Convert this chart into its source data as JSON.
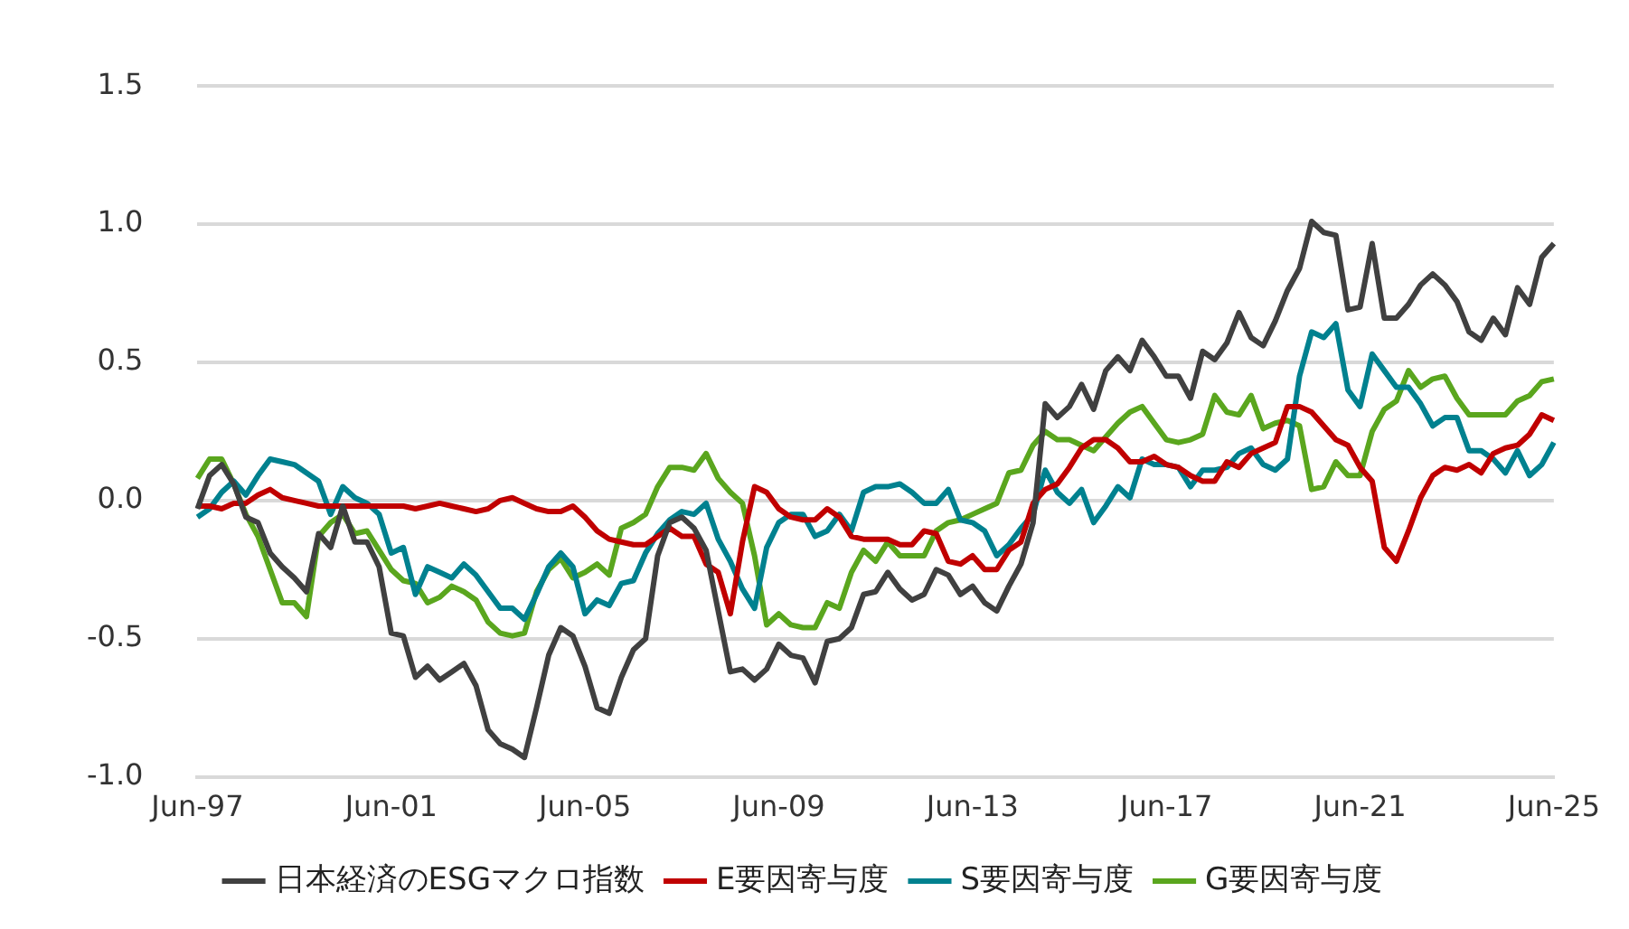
{
  "chart_data": {
    "type": "line",
    "categories": [
      "Jun-97",
      null,
      null,
      null,
      null,
      null,
      null,
      null,
      null,
      null,
      null,
      null,
      null,
      null,
      null,
      null,
      "Jun-01",
      null,
      null,
      null,
      null,
      null,
      null,
      null,
      null,
      null,
      null,
      null,
      null,
      null,
      null,
      null,
      "Jun-05",
      null,
      null,
      null,
      null,
      null,
      null,
      null,
      null,
      null,
      null,
      null,
      null,
      null,
      null,
      null,
      "Jun-09",
      null,
      null,
      null,
      null,
      null,
      null,
      null,
      null,
      null,
      null,
      null,
      null,
      null,
      null,
      null,
      "Jun-13",
      null,
      null,
      null,
      null,
      null,
      null,
      null,
      null,
      null,
      null,
      null,
      null,
      null,
      null,
      null,
      "Jun-17",
      null,
      null,
      null,
      null,
      null,
      null,
      null,
      null,
      null,
      null,
      null,
      null,
      null,
      null,
      null,
      "Jun-21",
      null,
      null,
      null,
      null,
      null,
      null,
      null,
      null,
      null,
      null,
      null,
      null,
      null,
      null,
      null,
      "Jun-25"
    ],
    "series": [
      {
        "name": "日本経済のESGマクロ指数",
        "color": "#404040",
        "values": [
          -0.03,
          0.09,
          0.13,
          0.06,
          -0.06,
          -0.08,
          -0.19,
          -0.24,
          -0.28,
          -0.33,
          -0.12,
          -0.17,
          -0.02,
          -0.15,
          -0.15,
          -0.24,
          -0.48,
          -0.49,
          -0.64,
          -0.6,
          -0.65,
          -0.62,
          -0.59,
          -0.67,
          -0.83,
          -0.88,
          -0.9,
          -0.93,
          -0.75,
          -0.56,
          -0.46,
          -0.49,
          -0.6,
          -0.75,
          -0.77,
          -0.64,
          -0.54,
          -0.5,
          -0.2,
          -0.08,
          -0.06,
          -0.1,
          -0.18,
          -0.4,
          -0.62,
          -0.61,
          -0.65,
          -0.61,
          -0.52,
          -0.56,
          -0.57,
          -0.66,
          -0.51,
          -0.5,
          -0.46,
          -0.34,
          -0.33,
          -0.26,
          -0.32,
          -0.36,
          -0.34,
          -0.25,
          -0.27,
          -0.34,
          -0.31,
          -0.37,
          -0.4,
          -0.31,
          -0.23,
          -0.08,
          0.35,
          0.3,
          0.34,
          0.42,
          0.33,
          0.47,
          0.52,
          0.47,
          0.58,
          0.52,
          0.45,
          0.45,
          0.37,
          0.54,
          0.51,
          0.57,
          0.68,
          0.59,
          0.56,
          0.65,
          0.76,
          0.84,
          1.01,
          0.97,
          0.96,
          0.69,
          0.7,
          0.93,
          0.66,
          0.66,
          0.71,
          0.78,
          0.82,
          0.78,
          0.72,
          0.61,
          0.58,
          0.66,
          0.6,
          0.77,
          0.71,
          0.88,
          0.93
        ]
      },
      {
        "name": "E要因寄与度",
        "color": "#c00000",
        "values": [
          -0.02,
          -0.02,
          -0.03,
          -0.01,
          -0.01,
          0.02,
          0.04,
          0.01,
          0.0,
          -0.01,
          -0.02,
          -0.02,
          -0.02,
          -0.02,
          -0.02,
          -0.02,
          -0.02,
          -0.02,
          -0.03,
          -0.02,
          -0.01,
          -0.02,
          -0.03,
          -0.04,
          -0.03,
          0.0,
          0.01,
          -0.01,
          -0.03,
          -0.04,
          -0.04,
          -0.02,
          -0.06,
          -0.11,
          -0.14,
          -0.15,
          -0.16,
          -0.16,
          -0.13,
          -0.1,
          -0.13,
          -0.13,
          -0.23,
          -0.26,
          -0.41,
          -0.15,
          0.05,
          0.03,
          -0.03,
          -0.06,
          -0.07,
          -0.07,
          -0.03,
          -0.06,
          -0.13,
          -0.14,
          -0.14,
          -0.14,
          -0.16,
          -0.16,
          -0.11,
          -0.12,
          -0.22,
          -0.23,
          -0.2,
          -0.25,
          -0.25,
          -0.18,
          -0.15,
          -0.01,
          0.04,
          0.06,
          0.12,
          0.19,
          0.22,
          0.22,
          0.19,
          0.14,
          0.14,
          0.16,
          0.13,
          0.12,
          0.09,
          0.07,
          0.07,
          0.14,
          0.12,
          0.17,
          0.19,
          0.21,
          0.34,
          0.34,
          0.32,
          0.27,
          0.22,
          0.2,
          0.12,
          0.07,
          -0.17,
          -0.22,
          -0.11,
          0.01,
          0.09,
          0.12,
          0.11,
          0.13,
          0.1,
          0.17,
          0.19,
          0.2,
          0.24,
          0.31,
          0.29
        ]
      },
      {
        "name": "S要因寄与度",
        "color": "#00818f",
        "values": [
          -0.06,
          -0.03,
          0.03,
          0.07,
          0.02,
          0.09,
          0.15,
          0.14,
          0.13,
          0.1,
          0.07,
          -0.05,
          0.05,
          0.01,
          -0.01,
          -0.05,
          -0.19,
          -0.17,
          -0.34,
          -0.24,
          -0.26,
          -0.28,
          -0.23,
          -0.27,
          -0.33,
          -0.39,
          -0.39,
          -0.43,
          -0.34,
          -0.24,
          -0.19,
          -0.24,
          -0.41,
          -0.36,
          -0.38,
          -0.3,
          -0.29,
          -0.19,
          -0.12,
          -0.07,
          -0.04,
          -0.05,
          -0.01,
          -0.14,
          -0.22,
          -0.32,
          -0.39,
          -0.17,
          -0.08,
          -0.05,
          -0.05,
          -0.13,
          -0.11,
          -0.05,
          -0.11,
          0.03,
          0.05,
          0.05,
          0.06,
          0.03,
          -0.01,
          -0.01,
          0.04,
          -0.07,
          -0.08,
          -0.11,
          -0.2,
          -0.16,
          -0.1,
          -0.05,
          0.11,
          0.03,
          -0.01,
          0.04,
          -0.08,
          -0.02,
          0.05,
          0.01,
          0.15,
          0.13,
          0.13,
          0.12,
          0.05,
          0.11,
          0.11,
          0.12,
          0.17,
          0.19,
          0.13,
          0.11,
          0.15,
          0.45,
          0.61,
          0.59,
          0.64,
          0.4,
          0.34,
          0.53,
          0.47,
          0.41,
          0.41,
          0.35,
          0.27,
          0.3,
          0.3,
          0.18,
          0.18,
          0.15,
          0.1,
          0.18,
          0.09,
          0.13,
          0.21
        ]
      },
      {
        "name": "G要因寄与度",
        "color": "#5aa61e",
        "values": [
          0.08,
          0.15,
          0.15,
          0.06,
          -0.05,
          -0.13,
          -0.25,
          -0.37,
          -0.37,
          -0.42,
          -0.13,
          -0.08,
          -0.05,
          -0.12,
          -0.11,
          -0.18,
          -0.25,
          -0.29,
          -0.3,
          -0.37,
          -0.35,
          -0.31,
          -0.33,
          -0.36,
          -0.44,
          -0.48,
          -0.49,
          -0.48,
          -0.33,
          -0.25,
          -0.21,
          -0.28,
          -0.26,
          -0.23,
          -0.27,
          -0.1,
          -0.08,
          -0.05,
          0.05,
          0.12,
          0.12,
          0.11,
          0.17,
          0.08,
          0.03,
          -0.01,
          -0.2,
          -0.45,
          -0.41,
          -0.45,
          -0.46,
          -0.46,
          -0.37,
          -0.39,
          -0.26,
          -0.18,
          -0.22,
          -0.15,
          -0.2,
          -0.2,
          -0.2,
          -0.11,
          -0.08,
          -0.07,
          -0.05,
          -0.03,
          -0.01,
          0.1,
          0.11,
          0.2,
          0.25,
          0.22,
          0.22,
          0.2,
          0.18,
          0.23,
          0.28,
          0.32,
          0.34,
          0.28,
          0.22,
          0.21,
          0.22,
          0.24,
          0.38,
          0.32,
          0.31,
          0.38,
          0.26,
          0.28,
          0.29,
          0.27,
          0.04,
          0.05,
          0.14,
          0.09,
          0.09,
          0.25,
          0.33,
          0.36,
          0.47,
          0.41,
          0.44,
          0.45,
          0.37,
          0.31,
          0.31,
          0.31,
          0.31,
          0.36,
          0.38,
          0.43,
          0.44
        ]
      }
    ],
    "ylim": [
      -1.0,
      1.5
    ],
    "yticks": [
      {
        "value": -1.0,
        "label": "-1.0"
      },
      {
        "value": -0.5,
        "label": "-0.5"
      },
      {
        "value": 0,
        "label": "0.0"
      },
      {
        "value": 0.5,
        "label": "0.5"
      },
      {
        "value": 1.0,
        "label": "1.0"
      },
      {
        "value": 1.5,
        "label": "1.5"
      }
    ],
    "grid": "y",
    "legend": "bottom",
    "marker": "none",
    "line_style": "solid"
  }
}
